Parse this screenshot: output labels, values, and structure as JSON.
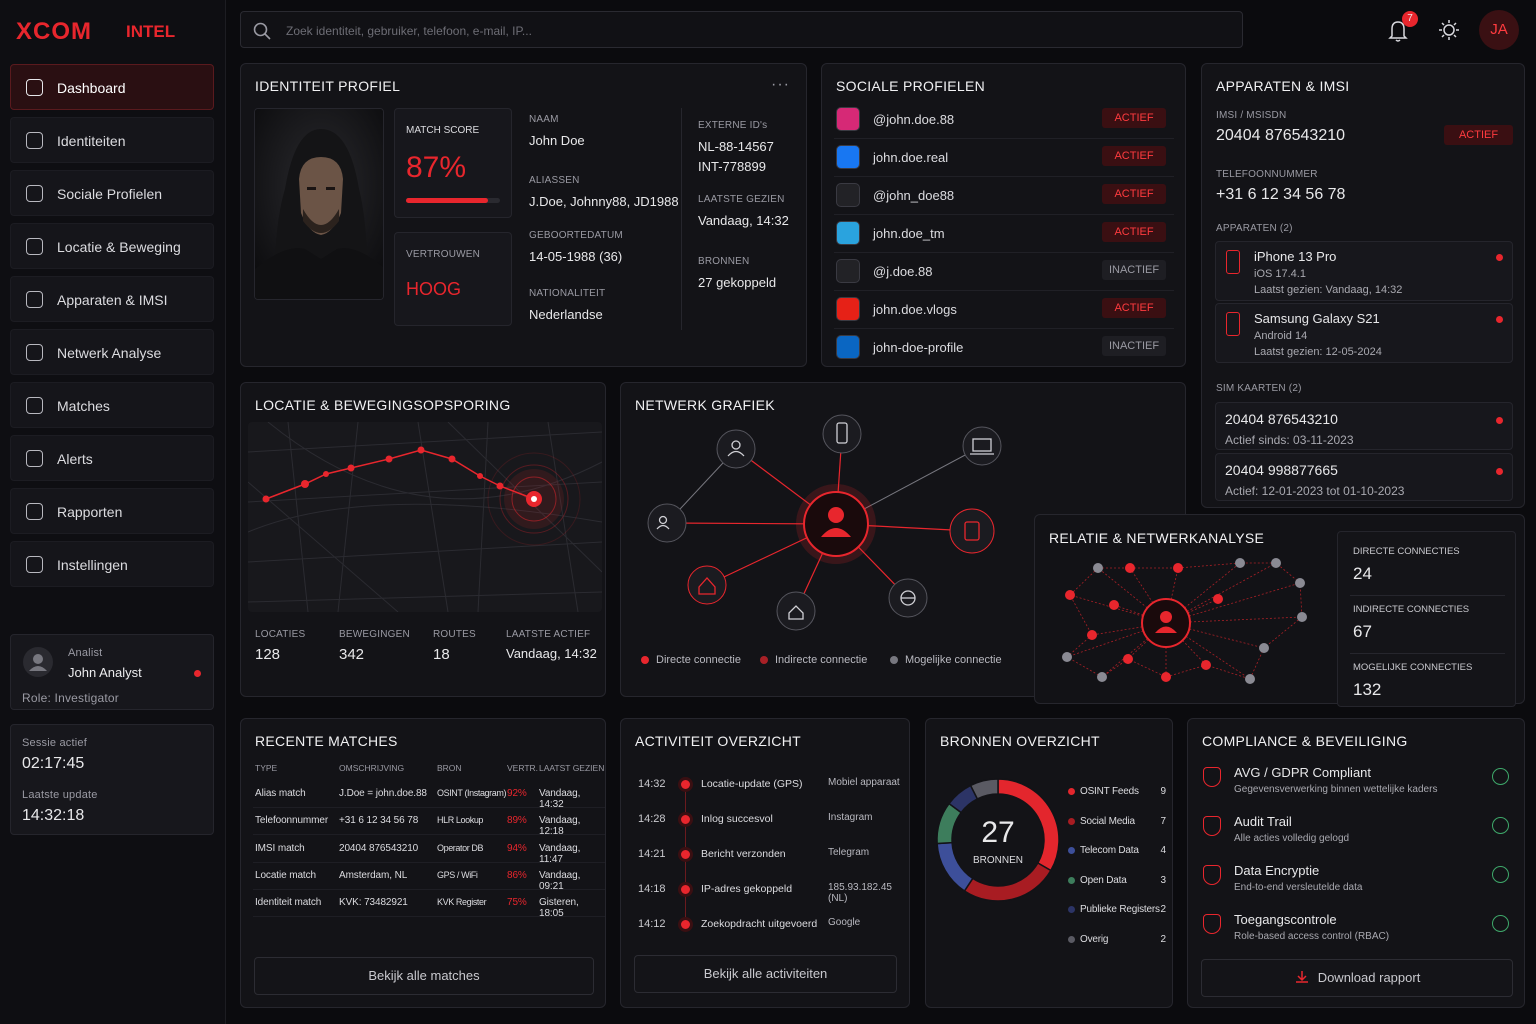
{
  "brand": {
    "logo": "XCOM",
    "suffix": "INTEL"
  },
  "search": {
    "placeholder": "Zoek identiteit, gebruiker, telefoon, e-mail, IP..."
  },
  "topbar": {
    "notifications": "7",
    "user_initials": "JA"
  },
  "nav": [
    {
      "label": "Dashboard",
      "active": true
    },
    {
      "label": "Identiteiten",
      "active": false
    },
    {
      "label": "Sociale Profielen",
      "active": false
    },
    {
      "label": "Locatie & Beweging",
      "active": false
    },
    {
      "label": "Apparaten & IMSI",
      "active": false
    },
    {
      "label": "Netwerk Analyse",
      "active": false
    },
    {
      "label": "Matches",
      "active": false
    },
    {
      "label": "Alerts",
      "active": false
    },
    {
      "label": "Rapporten",
      "active": false
    },
    {
      "label": "Instellingen",
      "active": false
    }
  ],
  "analyst": {
    "role_label": "Analist",
    "name": "John Analyst",
    "role": "Role: Investigator"
  },
  "session": {
    "active_label": "Sessie actief",
    "active": "02:17:45",
    "update_label": "Laatste update",
    "update": "14:32:18"
  },
  "identity": {
    "title": "IDENTITEIT PROFIEL",
    "match_label": "MATCH SCORE",
    "match_value": 87,
    "match_text": "87%",
    "trust_label": "VERTROUWEN",
    "trust": "HOOG",
    "fields": [
      {
        "label": "NAAM",
        "value": [
          "John Doe"
        ]
      },
      {
        "label": "ALIASSEN",
        "value": [
          "J.Doe, Johnny88, JD1988"
        ]
      },
      {
        "label": "GEBOORTEDATUM",
        "value": [
          "14-05-1988 (36)"
        ]
      },
      {
        "label": "NATIONALITEIT",
        "value": [
          "Nederlandse"
        ]
      }
    ],
    "fields2": [
      {
        "label": "EXTERNE ID's",
        "value": [
          "NL-88-14567",
          "INT-778899"
        ]
      },
      {
        "label": "LAATSTE GEZIEN",
        "value": [
          "Vandaag, 14:32"
        ]
      },
      {
        "label": "BRONNEN",
        "value": [
          "27 gekoppeld"
        ]
      }
    ]
  },
  "social": {
    "title": "SOCIALE PROFIELEN",
    "profiles": [
      {
        "handle": "@john.doe.88",
        "status": "ACTIEF",
        "active": true,
        "color": "#d62976"
      },
      {
        "handle": "john.doe.real",
        "status": "ACTIEF",
        "active": true,
        "color": "#1877f2"
      },
      {
        "handle": "@john_doe88",
        "status": "ACTIEF",
        "active": true,
        "color": "#222226"
      },
      {
        "handle": "john.doe_tm",
        "status": "ACTIEF",
        "active": true,
        "color": "#2aa3de"
      },
      {
        "handle": "@j.doe.88",
        "status": "INACTIEF",
        "active": false,
        "color": "#222226"
      },
      {
        "handle": "john.doe.vlogs",
        "status": "ACTIEF",
        "active": true,
        "color": "#e62117"
      },
      {
        "handle": "john-doe-profile",
        "status": "INACTIEF",
        "active": false,
        "color": "#0a66c2"
      }
    ]
  },
  "devices": {
    "title": "APPARATEN & IMSI",
    "imsi_label": "IMSI / MSISDN",
    "imsi": "20404 876543210",
    "imsi_status": "ACTIEF",
    "phone_label": "TELEFOONNUMMER",
    "phone": "+31 6 12 34 56 78",
    "devices_label": "APPARATEN (2)",
    "items": [
      {
        "name": "iPhone 13 Pro",
        "os": "iOS 17.4.1",
        "seen": "Laatst gezien: Vandaag, 14:32"
      },
      {
        "name": "Samsung Galaxy S21",
        "os": "Android 14",
        "seen": "Laatst gezien: 12-05-2024"
      }
    ],
    "sims_label": "SIM KAARTEN (2)",
    "sims": [
      {
        "number": "20404 876543210",
        "since": "Actief sinds: 03-11-2023"
      },
      {
        "number": "20404 998877665",
        "since": "Actief: 12-01-2023 tot 01-10-2023"
      }
    ]
  },
  "location": {
    "title": "LOCATIE & BEWEGINGSOPSPORING",
    "stats": [
      {
        "label": "LOCATIES",
        "value": 128
      },
      {
        "label": "BEWEGINGEN",
        "value": 342
      },
      {
        "label": "ROUTES",
        "value": 18
      },
      {
        "label": "LAATSTE ACTIEF",
        "value": "Vandaag, 14:32"
      }
    ]
  },
  "network": {
    "title": "NETWERK GRAFIEK",
    "legend": [
      "Directe connectie",
      "Indirecte connectie",
      "Mogelijke connectie"
    ]
  },
  "relation": {
    "title": "RELATIE & NETWERKANALYSE",
    "stats": [
      {
        "label": "DIRECTE CONNECTIES",
        "value": 24
      },
      {
        "label": "INDIRECTE CONNECTIES",
        "value": 67
      },
      {
        "label": "MOGELIJKE CONNECTIES",
        "value": 132
      }
    ]
  },
  "matches": {
    "title": "RECENTE MATCHES",
    "columns": [
      "TYPE",
      "OMSCHRIJVING",
      "BRON",
      "VERTR.",
      "LAATST GEZIEN"
    ],
    "rows": [
      [
        "Alias match",
        "J.Doe = john.doe.88",
        "OSINT (Instagram)",
        "92%",
        "Vandaag, 14:32"
      ],
      [
        "Telefoonnummer",
        "+31 6 12 34 56 78",
        "HLR Lookup",
        "89%",
        "Vandaag, 12:18"
      ],
      [
        "IMSI match",
        "20404 876543210",
        "Operator DB",
        "94%",
        "Vandaag, 11:47"
      ],
      [
        "Locatie match",
        "Amsterdam, NL",
        "GPS / WiFi",
        "86%",
        "Vandaag, 09:21"
      ],
      [
        "Identiteit match",
        "KVK: 73482921",
        "KVK Register",
        "75%",
        "Gisteren, 18:05"
      ]
    ],
    "button": "Bekijk alle matches"
  },
  "activity": {
    "title": "ACTIVITEIT OVERZICHT",
    "items": [
      {
        "time": "14:32",
        "event": "Locatie-update (GPS)",
        "source": "Mobiel apparaat"
      },
      {
        "time": "14:28",
        "event": "Inlog succesvol",
        "source": "Instagram"
      },
      {
        "time": "14:21",
        "event": "Bericht verzonden",
        "source": "Telegram"
      },
      {
        "time": "14:18",
        "event": "IP-adres gekoppeld",
        "source": "185.93.182.45 (NL)"
      },
      {
        "time": "14:12",
        "event": "Zoekopdracht uitgevoerd",
        "source": "Google"
      }
    ],
    "button": "Bekijk alle activiteiten"
  },
  "sources": {
    "title": "BRONNEN OVERZICHT",
    "total": 27,
    "total_label": "BRONNEN",
    "items": [
      {
        "name": "OSINT Feeds",
        "count": 9,
        "color": "#e3262d"
      },
      {
        "name": "Social Media",
        "count": 7,
        "color": "#a81c22"
      },
      {
        "name": "Telecom Data",
        "count": 4,
        "color": "#3d4f9a"
      },
      {
        "name": "Open Data",
        "count": 3,
        "color": "#3d7d5c"
      },
      {
        "name": "Publieke Registers",
        "count": 2,
        "color": "#2c3466"
      },
      {
        "name": "Overig",
        "count": 2,
        "color": "#5a5a63"
      }
    ]
  },
  "compliance": {
    "title": "COMPLIANCE & BEVEILIGING",
    "items": [
      {
        "title": "AVG / GDPR Compliant",
        "desc": "Gegevensverwerking binnen wettelijke kaders"
      },
      {
        "title": "Audit Trail",
        "desc": "Alle acties volledig gelogd"
      },
      {
        "title": "Data Encryptie",
        "desc": "End-to-end versleutelde data"
      },
      {
        "title": "Toegangscontrole",
        "desc": "Role-based access control (RBAC)"
      }
    ],
    "button": "Download rapport"
  }
}
